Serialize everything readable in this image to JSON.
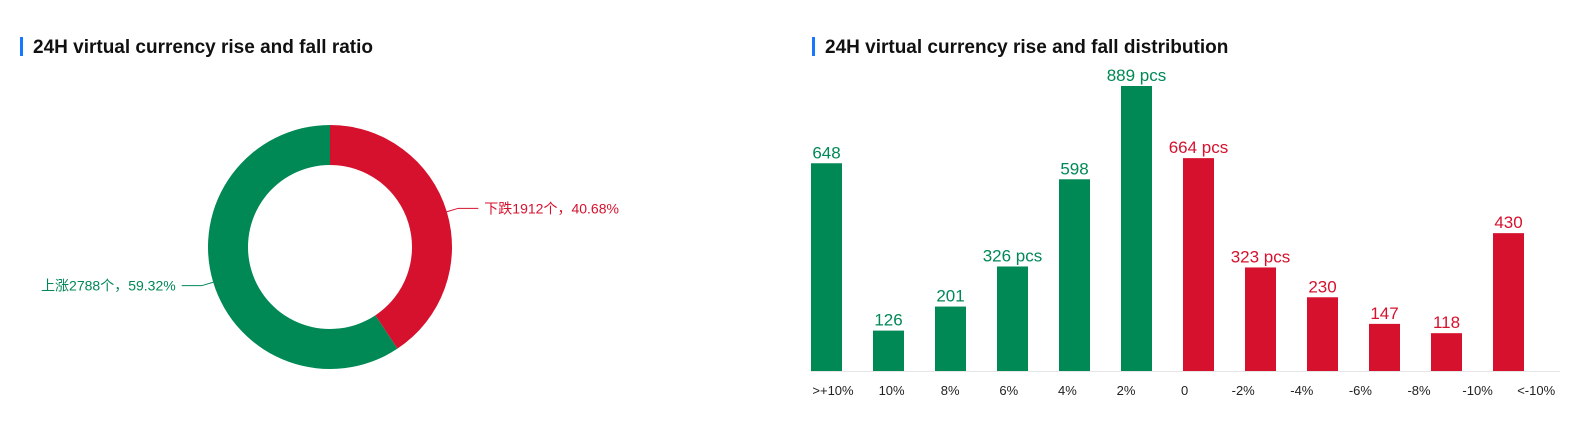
{
  "chart_data": [
    {
      "type": "pie",
      "title": "24H virtual currency rise and fall ratio",
      "values": [
        1912,
        2788
      ],
      "value_labels": [
        "下跌1912个，40.68%",
        "上涨2788个，59.32%"
      ],
      "colors": [
        "#d6112d",
        "#008855"
      ],
      "donut": true
    },
    {
      "type": "bar",
      "title": "24H virtual currency rise and fall distribution",
      "categories": [
        ">+10%",
        "10%",
        "8%",
        "6%",
        "4%",
        "2%",
        "0",
        "-2%",
        "-4%",
        "-6%",
        "-8%",
        "-10%",
        "<-10%"
      ],
      "values": [
        648,
        126,
        201,
        326,
        598,
        889,
        664,
        323,
        230,
        147,
        118,
        430,
        null
      ],
      "value_labels": [
        "648",
        "126",
        "201",
        "326 pcs",
        "598",
        "889 pcs",
        "664 pcs",
        "323 pcs",
        "230",
        "147",
        "118",
        "430",
        null
      ],
      "colors": [
        "#008855",
        "#008855",
        "#008855",
        "#008855",
        "#008855",
        "#008855",
        "#d6112d",
        "#d6112d",
        "#d6112d",
        "#d6112d",
        "#d6112d",
        "#d6112d",
        "#d6112d"
      ]
    }
  ]
}
